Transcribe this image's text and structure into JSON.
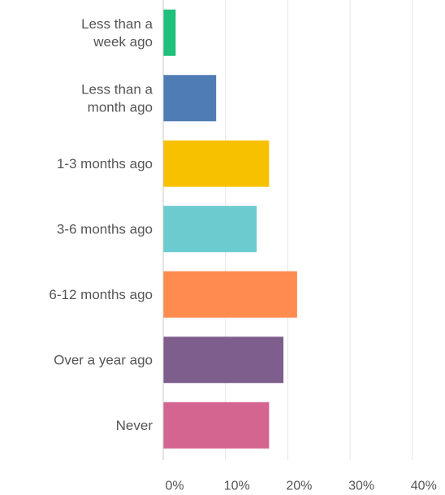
{
  "chart_data": {
    "type": "bar",
    "orientation": "horizontal",
    "categories": [
      [
        "Less than a",
        "week ago"
      ],
      [
        "Less than a",
        "month ago"
      ],
      [
        "1-3 months ago"
      ],
      [
        "3-6 months ago"
      ],
      [
        "6-12 months ago"
      ],
      [
        "Over a year ago"
      ],
      [
        "Never"
      ]
    ],
    "values": [
      2,
      8.5,
      17,
      15,
      21.5,
      19.3,
      17
    ],
    "colors": [
      "#1fc07a",
      "#507cb6",
      "#f7c100",
      "#6ccbce",
      "#ff8b4f",
      "#7d5e8d",
      "#d46590"
    ],
    "xlim": [
      0,
      45
    ],
    "xticks": [
      0,
      10,
      20,
      30,
      40
    ],
    "xtick_labels": [
      "0%",
      "10%",
      "20%",
      "30%",
      "40%"
    ],
    "grid": true,
    "title": "",
    "xlabel": "",
    "ylabel": ""
  }
}
